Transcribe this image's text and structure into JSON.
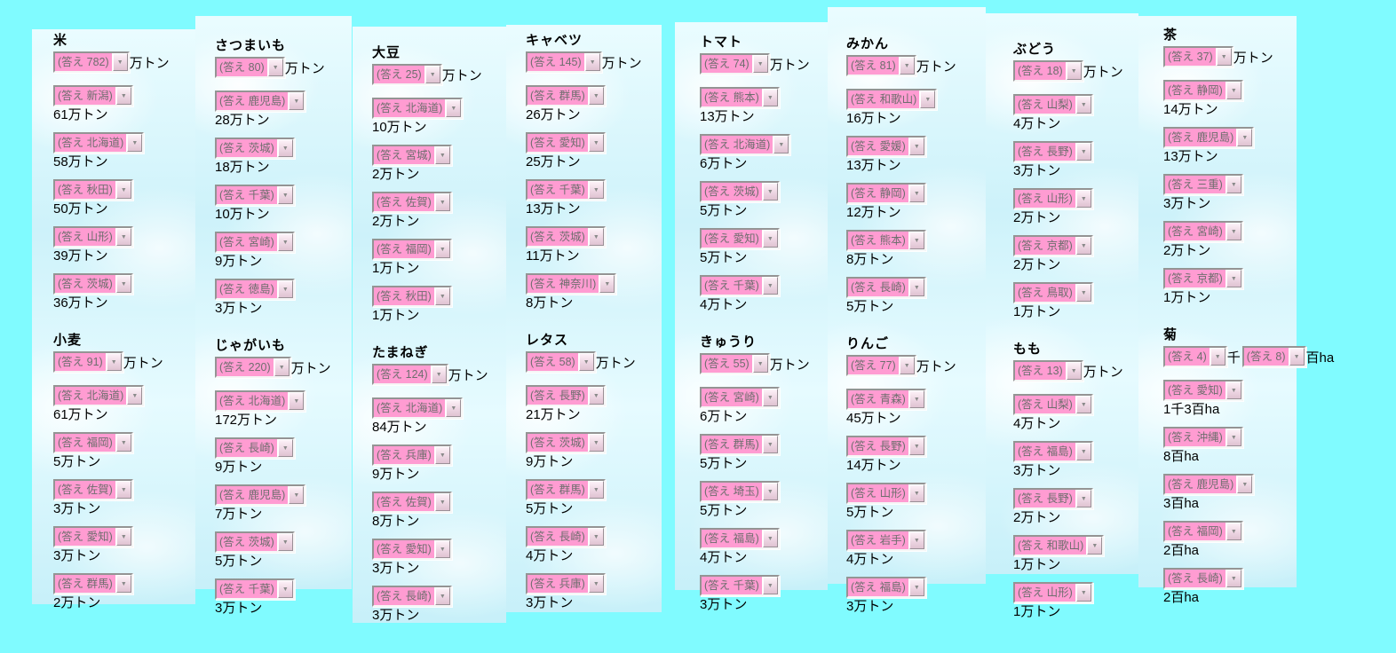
{
  "colors": {
    "background": "#80fbff",
    "select_pink": "#ff9cd2"
  },
  "columns": [
    {
      "sections": [
        {
          "title": "米",
          "total": [
            {
              "select": "(答え 782)"
            },
            {
              "text": "万トン"
            }
          ],
          "entries": [
            {
              "select": "(答え 新潟)",
              "amount": "61万トン"
            },
            {
              "select": "(答え 北海道)",
              "amount": "58万トン"
            },
            {
              "select": "(答え 秋田)",
              "amount": "50万トン"
            },
            {
              "select": "(答え 山形)",
              "amount": "39万トン"
            },
            {
              "select": "(答え 茨城)",
              "amount": "36万トン"
            }
          ]
        },
        {
          "title": "小麦",
          "total": [
            {
              "select": "(答え 91)"
            },
            {
              "text": "万トン"
            }
          ],
          "entries": [
            {
              "select": "(答え 北海道)",
              "amount": "61万トン"
            },
            {
              "select": "(答え 福岡)",
              "amount": "5万トン"
            },
            {
              "select": "(答え 佐賀)",
              "amount": "3万トン"
            },
            {
              "select": "(答え 愛知)",
              "amount": "3万トン"
            },
            {
              "select": "(答え 群馬)",
              "amount": "2万トン"
            }
          ]
        }
      ]
    },
    {
      "sections": [
        {
          "title": "さつまいも",
          "total": [
            {
              "select": "(答え 80)"
            },
            {
              "text": "万トン"
            }
          ],
          "entries": [
            {
              "select": "(答え 鹿児島)",
              "amount": "28万トン"
            },
            {
              "select": "(答え 茨城)",
              "amount": "18万トン"
            },
            {
              "select": "(答え 千葉)",
              "amount": "10万トン"
            },
            {
              "select": "(答え 宮崎)",
              "amount": "9万トン"
            },
            {
              "select": "(答え 徳島)",
              "amount": "3万トン"
            }
          ]
        },
        {
          "title": "じゃがいも",
          "total": [
            {
              "select": "(答え 220)"
            },
            {
              "text": "万トン"
            }
          ],
          "entries": [
            {
              "select": "(答え 北海道)",
              "amount": "172万トン"
            },
            {
              "select": "(答え 長崎)",
              "amount": "9万トン"
            },
            {
              "select": "(答え 鹿児島)",
              "amount": "7万トン"
            },
            {
              "select": "(答え 茨城)",
              "amount": "5万トン"
            },
            {
              "select": "(答え 千葉)",
              "amount": "3万トン"
            }
          ]
        }
      ]
    },
    {
      "sections": [
        {
          "title": "大豆",
          "total": [
            {
              "select": "(答え 25)"
            },
            {
              "text": "万トン"
            }
          ],
          "entries": [
            {
              "select": "(答え 北海道)",
              "amount": "10万トン"
            },
            {
              "select": "(答え 宮城)",
              "amount": "2万トン"
            },
            {
              "select": "(答え 佐賀)",
              "amount": "2万トン"
            },
            {
              "select": "(答え 福岡)",
              "amount": "1万トン"
            },
            {
              "select": "(答え 秋田)",
              "amount": "1万トン"
            }
          ]
        },
        {
          "title": "たまねぎ",
          "total": [
            {
              "select": "(答え 124)"
            },
            {
              "text": "万トン"
            }
          ],
          "entries": [
            {
              "select": "(答え 北海道)",
              "amount": "84万トン"
            },
            {
              "select": "(答え 兵庫)",
              "amount": "9万トン"
            },
            {
              "select": "(答え 佐賀)",
              "amount": "8万トン"
            },
            {
              "select": "(答え 愛知)",
              "amount": "3万トン"
            },
            {
              "select": "(答え 長崎)",
              "amount": "3万トン"
            }
          ]
        }
      ]
    },
    {
      "sections": [
        {
          "title": "キャベツ",
          "total": [
            {
              "select": "(答え 145)"
            },
            {
              "text": "万トン"
            }
          ],
          "entries": [
            {
              "select": "(答え 群馬)",
              "amount": "26万トン"
            },
            {
              "select": "(答え 愛知)",
              "amount": "25万トン"
            },
            {
              "select": "(答え 千葉)",
              "amount": "13万トン"
            },
            {
              "select": "(答え 茨城)",
              "amount": "11万トン"
            },
            {
              "select": "(答え 神奈川)",
              "amount": "8万トン"
            }
          ]
        },
        {
          "title": "レタス",
          "total": [
            {
              "select": "(答え 58)"
            },
            {
              "text": "万トン"
            }
          ],
          "entries": [
            {
              "select": "(答え 長野)",
              "amount": "21万トン"
            },
            {
              "select": "(答え 茨城)",
              "amount": "9万トン"
            },
            {
              "select": "(答え 群馬)",
              "amount": "5万トン"
            },
            {
              "select": "(答え 長崎)",
              "amount": "4万トン"
            },
            {
              "select": "(答え 兵庫)",
              "amount": "3万トン"
            }
          ]
        }
      ]
    },
    {
      "sections": [
        {
          "title": "トマト",
          "total": [
            {
              "select": "(答え 74)"
            },
            {
              "text": "万トン"
            }
          ],
          "entries": [
            {
              "select": "(答え 熊本)",
              "amount": "13万トン"
            },
            {
              "select": "(答え 北海道)",
              "amount": "6万トン"
            },
            {
              "select": "(答え 茨城)",
              "amount": "5万トン"
            },
            {
              "select": "(答え 愛知)",
              "amount": "5万トン"
            },
            {
              "select": "(答え 千葉)",
              "amount": "4万トン"
            }
          ]
        },
        {
          "title": "きゅうり",
          "total": [
            {
              "select": "(答え 55)"
            },
            {
              "text": "万トン"
            }
          ],
          "entries": [
            {
              "select": "(答え 宮崎)",
              "amount": "6万トン"
            },
            {
              "select": "(答え 群馬)",
              "amount": "5万トン"
            },
            {
              "select": "(答え 埼玉)",
              "amount": "5万トン"
            },
            {
              "select": "(答え 福島)",
              "amount": "4万トン"
            },
            {
              "select": "(答え 千葉)",
              "amount": "3万トン"
            }
          ]
        }
      ]
    },
    {
      "sections": [
        {
          "title": "みかん",
          "total": [
            {
              "select": "(答え 81)"
            },
            {
              "text": "万トン"
            }
          ],
          "entries": [
            {
              "select": "(答え 和歌山)",
              "amount": "16万トン"
            },
            {
              "select": "(答え 愛媛)",
              "amount": "13万トン"
            },
            {
              "select": "(答え 静岡)",
              "amount": "12万トン"
            },
            {
              "select": "(答え 熊本)",
              "amount": "8万トン"
            },
            {
              "select": "(答え 長崎)",
              "amount": "5万トン"
            }
          ]
        },
        {
          "title": "りんご",
          "total": [
            {
              "select": "(答え 77)"
            },
            {
              "text": "万トン"
            }
          ],
          "entries": [
            {
              "select": "(答え 青森)",
              "amount": "45万トン"
            },
            {
              "select": "(答え 長野)",
              "amount": "14万トン"
            },
            {
              "select": "(答え 山形)",
              "amount": "5万トン"
            },
            {
              "select": "(答え 岩手)",
              "amount": "4万トン"
            },
            {
              "select": "(答え 福島)",
              "amount": "3万トン"
            }
          ]
        }
      ]
    },
    {
      "sections": [
        {
          "title": "ぶどう",
          "total": [
            {
              "select": "(答え 18)"
            },
            {
              "text": "万トン"
            }
          ],
          "entries": [
            {
              "select": "(答え 山梨)",
              "amount": "4万トン"
            },
            {
              "select": "(答え 長野)",
              "amount": "3万トン"
            },
            {
              "select": "(答え 山形)",
              "amount": "2万トン"
            },
            {
              "select": "(答え 京都)",
              "amount": "2万トン"
            },
            {
              "select": "(答え 鳥取)",
              "amount": "1万トン"
            }
          ]
        },
        {
          "title": "もも",
          "total": [
            {
              "select": "(答え 13)"
            },
            {
              "text": "万トン"
            }
          ],
          "entries": [
            {
              "select": "(答え 山梨)",
              "amount": "4万トン"
            },
            {
              "select": "(答え 福島)",
              "amount": "3万トン"
            },
            {
              "select": "(答え 長野)",
              "amount": "2万トン"
            },
            {
              "select": "(答え 和歌山)",
              "amount": "1万トン"
            },
            {
              "select": "(答え 山形)",
              "amount": "1万トン"
            }
          ]
        }
      ]
    },
    {
      "sections": [
        {
          "title": "茶",
          "total": [
            {
              "select": "(答え 37)"
            },
            {
              "text": "万トン"
            }
          ],
          "entries": [
            {
              "select": "(答え 静岡)",
              "amount": "14万トン"
            },
            {
              "select": "(答え 鹿児島)",
              "amount": "13万トン"
            },
            {
              "select": "(答え 三重)",
              "amount": "3万トン"
            },
            {
              "select": "(答え 宮崎)",
              "amount": "2万トン"
            },
            {
              "select": "(答え 京都)",
              "amount": "1万トン"
            }
          ]
        },
        {
          "title": "菊",
          "total": [
            {
              "select": "(答え 4)"
            },
            {
              "text": "千"
            },
            {
              "select": "(答え 8)"
            },
            {
              "text": "百ha"
            }
          ],
          "entries": [
            {
              "select": "(答え 愛知)",
              "amount": "1千3百ha"
            },
            {
              "select": "(答え 沖縄)",
              "amount": "8百ha"
            },
            {
              "select": "(答え 鹿児島)",
              "amount": "3百ha"
            },
            {
              "select": "(答え 福岡)",
              "amount": "2百ha"
            },
            {
              "select": "(答え 長崎)",
              "amount": "2百ha"
            }
          ]
        }
      ]
    }
  ]
}
